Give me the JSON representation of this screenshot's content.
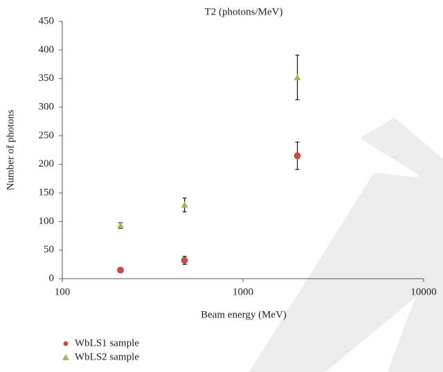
{
  "chart_data": {
    "type": "scatter",
    "title": "T2 (photons/MeV)",
    "x_label": "Beam energy (MeV)",
    "y_label": "Number of photons",
    "xlim": [
      100,
      10000
    ],
    "xticks": [
      100,
      1000,
      10000
    ],
    "xscale": "log",
    "ylim": [
      0,
      450
    ],
    "yticks": [
      0,
      50,
      100,
      150,
      200,
      250,
      300,
      350,
      400,
      450
    ],
    "series": [
      {
        "name": "WbLS1 sample",
        "color": "#c0504d",
        "marker": "circle",
        "x": [
          210,
          475,
          2000
        ],
        "values": [
          15,
          32,
          215
        ],
        "errors": [
          1,
          7,
          24
        ]
      },
      {
        "name": "WbLS2 sample",
        "color": "#9bbb59",
        "marker": "triangle",
        "x": [
          210,
          475,
          2000
        ],
        "values": [
          93,
          129,
          352
        ],
        "errors": [
          5,
          12,
          39
        ]
      }
    ]
  }
}
